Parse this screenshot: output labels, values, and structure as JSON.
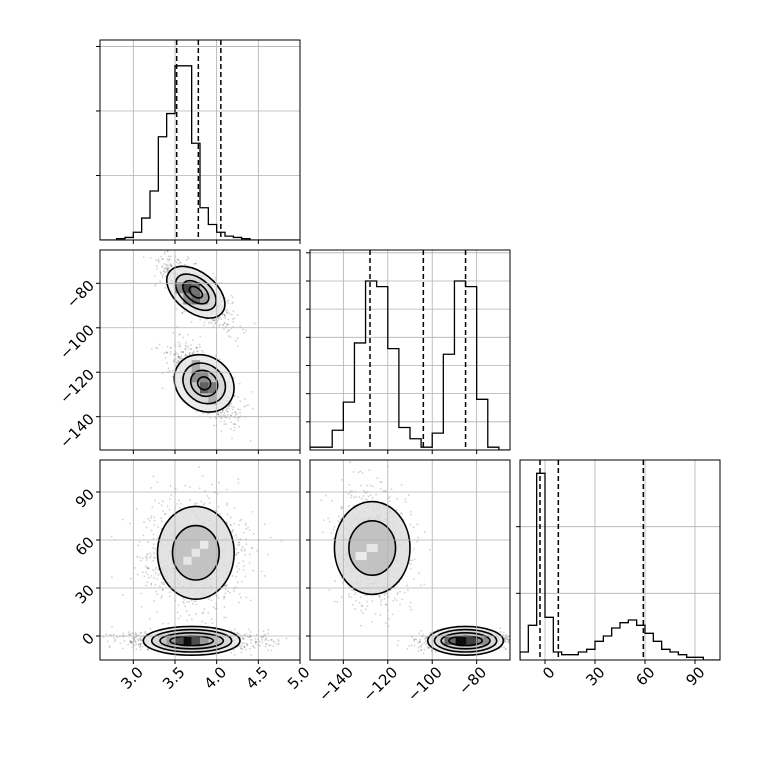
{
  "chart_data": {
    "type": "corner",
    "parameters": [
      "",
      "",
      ""
    ],
    "grid": true,
    "panels": [
      {
        "id": "hist-p1",
        "kind": "histogram",
        "xlim": [
          2.6,
          5.0
        ],
        "bins": [
          2.6,
          2.7,
          2.8,
          2.9,
          3.0,
          3.1,
          3.2,
          3.3,
          3.4,
          3.5,
          3.6,
          3.7,
          3.8,
          3.9,
          4.0,
          4.1,
          4.2,
          4.3,
          4.4,
          4.5,
          4.6,
          4.7,
          4.8,
          4.9,
          5.0
        ],
        "counts": [
          0,
          0,
          1,
          2,
          6,
          17,
          38,
          80,
          98,
          135,
          135,
          75,
          25,
          12,
          6,
          3,
          2,
          1,
          0,
          0,
          0,
          0,
          0,
          0
        ],
        "ymax": 155,
        "quantiles": [
          3.52,
          3.78,
          4.05
        ]
      },
      {
        "id": "hist-p2",
        "kind": "histogram",
        "xlim": [
          -155,
          -65
        ],
        "bins": [
          -155,
          -150,
          -145,
          -140,
          -135,
          -130,
          -125,
          -120,
          -115,
          -110,
          -105,
          -100,
          -95,
          -90,
          -85,
          -80,
          -75,
          -70,
          -65
        ],
        "counts": [
          1,
          1,
          7,
          17,
          38,
          60,
          58,
          36,
          8,
          4,
          1,
          6,
          34,
          60,
          58,
          18,
          1,
          0
        ],
        "ymax": 71,
        "quantiles": [
          -128,
          -104,
          -85
        ]
      },
      {
        "id": "hist-p3",
        "kind": "histogram",
        "xlim": [
          -15,
          105
        ],
        "bins": [
          -15,
          -10,
          -5,
          0,
          5,
          10,
          15,
          20,
          25,
          30,
          35,
          40,
          45,
          50,
          55,
          60,
          65,
          70,
          75,
          80,
          85,
          90,
          95,
          100,
          105
        ],
        "counts": [
          3,
          13,
          70,
          16,
          3,
          2,
          2,
          3,
          4,
          7,
          9,
          12,
          14,
          15,
          13,
          10,
          7,
          4,
          3,
          2,
          1,
          1,
          0,
          0
        ],
        "ymax": 75,
        "quantiles": [
          -3,
          8,
          59
        ]
      },
      {
        "id": "scatter-p1-p2",
        "kind": "density",
        "xlim": [
          2.6,
          5.0
        ],
        "ylim": [
          -155,
          -65
        ],
        "clusters": [
          {
            "center": [
              3.75,
              -84
            ],
            "sigma": [
              0.17,
              6
            ],
            "rho": -0.75,
            "levels": [
              [
                0.4,
                9
              ],
              [
                0.28,
                6.3
              ],
              [
                0.18,
                4
              ],
              [
                0.09,
                2
              ]
            ]
          },
          {
            "center": [
              3.85,
              -125
            ],
            "sigma": [
              0.16,
              7
            ],
            "rho": -0.7,
            "levels": [
              [
                0.38,
                12
              ],
              [
                0.27,
                8.5
              ],
              [
                0.17,
                5.5
              ],
              [
                0.08,
                2.8
              ]
            ]
          }
        ],
        "cells": [
          {
            "x": 3.65,
            "y": -82,
            "shade": 0.28
          },
          {
            "x": 3.75,
            "y": -82,
            "shade": 0.45
          },
          {
            "x": 3.65,
            "y": -87,
            "shade": 0.55
          },
          {
            "x": 3.75,
            "y": -87,
            "shade": 0.42
          },
          {
            "x": 3.55,
            "y": -82,
            "shade": 0.55
          },
          {
            "x": 3.85,
            "y": -87,
            "shade": 0.62
          },
          {
            "x": 3.75,
            "y": -122,
            "shade": 0.55
          },
          {
            "x": 3.85,
            "y": -122,
            "shade": 0.55
          },
          {
            "x": 3.85,
            "y": -127,
            "shade": 0.38
          },
          {
            "x": 3.95,
            "y": -127,
            "shade": 0.48
          },
          {
            "x": 3.75,
            "y": -117,
            "shade": 0.68
          },
          {
            "x": 3.95,
            "y": -132,
            "shade": 0.68
          }
        ]
      },
      {
        "id": "scatter-p1-p3",
        "kind": "density",
        "xlim": [
          2.6,
          5.0
        ],
        "ylim": [
          -15,
          110
        ],
        "clusters": [
          {
            "center": [
              3.75,
              52
            ],
            "sigma": [
              0.25,
              15
            ],
            "rho": 0.0,
            "levels": [
              [
                0.46,
                29
              ],
              [
                0.28,
                17
              ]
            ]
          },
          {
            "center": [
              3.7,
              -3
            ],
            "sigma": [
              0.35,
              2.5
            ],
            "rho": 0.0,
            "levels": [
              [
                0.58,
                9
              ],
              [
                0.48,
                7
              ],
              [
                0.38,
                5
              ],
              [
                0.26,
                3
              ]
            ]
          }
        ],
        "cells": [
          {
            "x": 3.75,
            "y": 52,
            "shade": 0.9
          },
          {
            "x": 3.65,
            "y": 47,
            "shade": 0.9
          },
          {
            "x": 3.85,
            "y": 57,
            "shade": 0.92
          },
          {
            "x": 3.65,
            "y": -3,
            "shade": 0.05
          },
          {
            "x": 3.55,
            "y": -3,
            "shade": 0.3
          },
          {
            "x": 3.75,
            "y": -3,
            "shade": 0.3
          },
          {
            "x": 3.45,
            "y": -3,
            "shade": 0.6
          },
          {
            "x": 3.85,
            "y": -3,
            "shade": 0.6
          },
          {
            "x": 3.95,
            "y": -3,
            "shade": 0.75
          }
        ]
      },
      {
        "id": "scatter-p2-p3",
        "kind": "density",
        "xlim": [
          -155,
          -65
        ],
        "ylim": [
          -15,
          110
        ],
        "clusters": [
          {
            "center": [
              -127,
              55
            ],
            "sigma": [
              7,
              15
            ],
            "rho": 0.0,
            "levels": [
              [
                17,
                29
              ],
              [
                10.5,
                17
              ]
            ]
          },
          {
            "center": [
              -85,
              -3
            ],
            "sigma": [
              9,
              2.5
            ],
            "rho": 0.0,
            "levels": [
              [
                17,
                9
              ],
              [
                14,
                7
              ],
              [
                11,
                5
              ],
              [
                7.5,
                3
              ]
            ]
          }
        ],
        "cells": [
          {
            "x": -127,
            "y": 55,
            "shade": 0.9
          },
          {
            "x": -132,
            "y": 50,
            "shade": 0.92
          },
          {
            "x": -87,
            "y": -3,
            "shade": 0.05
          },
          {
            "x": -82,
            "y": -3,
            "shade": 0.25
          },
          {
            "x": -92,
            "y": -3,
            "shade": 0.4
          },
          {
            "x": -77,
            "y": -3,
            "shade": 0.55
          }
        ]
      }
    ],
    "axes": {
      "hist_p1_yticks": [
        50,
        100,
        150
      ],
      "hist_p2_yticks": [
        10,
        20,
        30,
        40,
        50,
        60,
        70
      ],
      "hist_p3_yticks": [
        25,
        50
      ],
      "p1_ticks": [
        3.0,
        3.5,
        4.0,
        4.5,
        5.0
      ],
      "p1_tick_labels": [
        "3.0",
        "3.5",
        "4.0",
        "4.5",
        "5.0"
      ],
      "p2_ticks": [
        -140,
        -120,
        -100,
        -80
      ],
      "p2_tick_labels": [
        "−140",
        "−120",
        "−100",
        "−80"
      ],
      "p3_ticks": [
        0,
        30,
        60,
        90
      ],
      "p3_tick_labels": [
        "0",
        "30",
        "60",
        "90"
      ]
    }
  }
}
